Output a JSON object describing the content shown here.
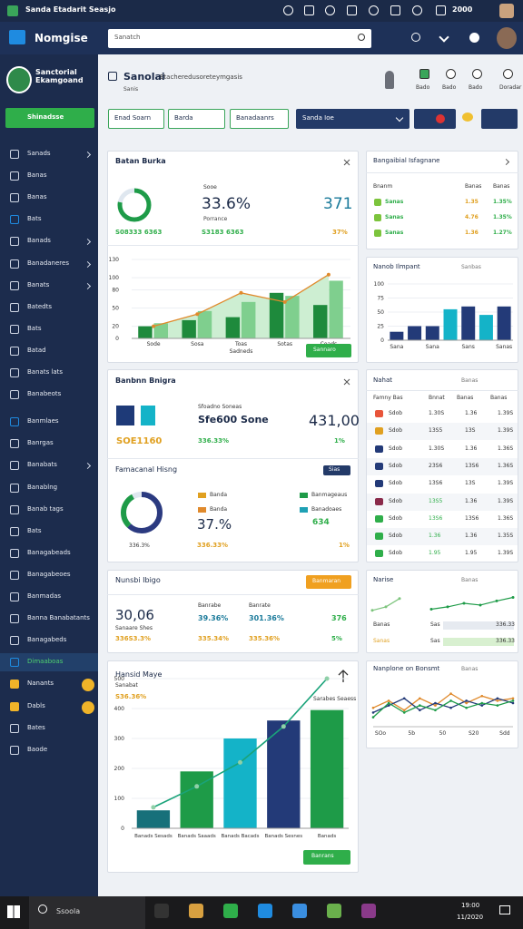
{
  "status_bar": {
    "title": "Sanda Etadarit Seasjo",
    "time": "2000"
  },
  "header": {
    "logo": "Nomgise",
    "search_placeholder": "Sanatch"
  },
  "sidebar": {
    "profile_name": "Sanctorial Ekamgoand",
    "button": "Shinadsse",
    "menu": [
      "Sanads",
      "Banas",
      "Banas",
      "Bats",
      "Banads",
      "Banadaneres",
      "Banats",
      "Batedts",
      "Bats",
      "Batad",
      "Banats lats",
      "Banabeots",
      "Banmlaes",
      "Banrgas",
      "Banabats",
      "Banablng",
      "Banab tags",
      "Bats",
      "Banagabeads",
      "Banagabeoes",
      "Banmadas",
      "Banna Banabatants",
      "Banagabeds",
      "Dimaaboas",
      "Nanants",
      "Dabls",
      "Bates",
      "Baode"
    ]
  },
  "page_header": {
    "title": "Sanolai",
    "subtitle": "Etacheredusoreteymgasis",
    "caption": "Sanis",
    "actions": [
      "Bado",
      "Bado",
      "Bado",
      "Doradar"
    ]
  },
  "filters": [
    "Enad Soarn",
    "Barda",
    "Banadaanrs",
    "Sanda Ioe"
  ],
  "card_performance": {
    "title": "Batan Burka",
    "donut": {
      "values": [
        78,
        22
      ],
      "colors": [
        "#1e9b48",
        "#dfe7ef"
      ]
    },
    "kpi_caption": "Sooe",
    "kpi": "33.6%",
    "kpi_label": "Porrance",
    "count": "371",
    "footer": [
      "S08333 6363",
      "S3183 6363",
      "37%"
    ],
    "chart": {
      "type": "bar",
      "ylim": [
        0,
        130
      ],
      "yticks": [
        0,
        20,
        50,
        80,
        100,
        130
      ],
      "categories": [
        "Sode",
        "Sosa",
        "Toas",
        "Sotas",
        "Coads"
      ],
      "x_label": "Sadneds",
      "series": [
        {
          "color": "#1e8a3c",
          "values": [
            20,
            30,
            35,
            75,
            55
          ]
        },
        {
          "color": "#7fcf8e",
          "values": [
            25,
            45,
            60,
            70,
            95
          ]
        }
      ],
      "line": {
        "color": "#e08a2c",
        "values": [
          20,
          40,
          75,
          60,
          105
        ]
      },
      "area_color": "#cdeed2"
    },
    "button": "Sannaro"
  },
  "card_budget": {
    "title": "Banbnn Bnigra",
    "squares": [
      "#1e3a78",
      "#14b3c8"
    ],
    "stat_caption": "Sfoadno Soneas",
    "stat": "Sfe600 Sone",
    "total": "431,00",
    "left_value": "SOE1160",
    "change": "336.33%",
    "change_right": "1%",
    "section_title": "Famacanal Hisng",
    "section_button": "Sias",
    "donut": {
      "values": [
        62,
        30,
        8
      ],
      "colors": [
        "#2b3a80",
        "#1e9b48",
        "#dfe7ef"
      ]
    },
    "donut_caption": "336.3%",
    "legend": [
      {
        "label": "Banda",
        "color": "#e0a020"
      },
      {
        "label": "Banmageaus",
        "color": "#1e9b48"
      },
      {
        "label": "Banda",
        "color": "#e08a2c"
      },
      {
        "label": "Banadoaes",
        "color": "#1ea0b4"
      }
    ],
    "kpi": "37.%",
    "kpi_sub": "336.33%",
    "kpi2": "634",
    "kpi2_sub": "1%"
  },
  "card_numbers": {
    "title": "Nunsbi Ibigo",
    "button": "Banmaran",
    "value": "30,06",
    "value_label": "Sanaare Shes",
    "value_sub": "336S3.3%",
    "columns": [
      {
        "label": "Banrabe",
        "value": "39.36%",
        "sub": "335.34%"
      },
      {
        "label": "Banrate",
        "value": "301.36%",
        "sub": "335.36%"
      },
      {
        "value": "376",
        "sub": "5%"
      }
    ]
  },
  "card_growth": {
    "title": "Hansid Maye",
    "subtitle": "Sanabat",
    "value": "S36.36%",
    "chart": {
      "type": "bar",
      "ylim": [
        0,
        500
      ],
      "yticks": [
        0,
        100,
        200,
        300,
        400,
        500
      ],
      "categories": [
        "Banads Sesads",
        "Banads Saaads",
        "Banads Bacads",
        "Banads Sesnes",
        "Banads"
      ],
      "values": [
        60,
        190,
        300,
        360,
        395
      ],
      "colors": [
        "#17707a",
        "#1e9b48",
        "#14b3c8",
        "#233a78",
        "#1e9b48"
      ],
      "line": {
        "color": "#1aa37a",
        "values": [
          70,
          140,
          220,
          340,
          500
        ]
      },
      "annotation": "Sarabes Seaess"
    },
    "button": "Banrans"
  },
  "right_table": {
    "title": "Bangaibial Isfagnane",
    "columns": [
      "Bnanm",
      "Banas",
      "Banas"
    ],
    "rows": [
      [
        "Sanas",
        "1.35",
        "1.35%"
      ],
      [
        "Sanas",
        "4.76",
        "1.35%"
      ],
      [
        "Sanas",
        "1.36",
        "1.27%"
      ]
    ]
  },
  "right_impact": {
    "title": "Nanob Ilmpant",
    "link": "Sanbas",
    "chart": {
      "type": "bar",
      "ylim": [
        0,
        100
      ],
      "yticks": [
        0,
        25,
        50,
        75,
        100
      ],
      "categories": [
        "Sana",
        null,
        "Sana",
        null,
        "Sans",
        null,
        "Sanas"
      ],
      "values": [
        15,
        25,
        25,
        55,
        60,
        45,
        60
      ],
      "colors": [
        "#233a78",
        "#233a78",
        "#233a78",
        "#14b3c8",
        "#233a78",
        "#14b3c8",
        "#233a78"
      ]
    }
  },
  "right_list": {
    "title": "Nahat",
    "link": "Banas",
    "columns": [
      "Famny Bas",
      "Bnnat",
      "Banas",
      "Banas"
    ],
    "rows": [
      [
        "Sdob",
        "1.30S",
        "1.36",
        "1.39S"
      ],
      [
        "Sdob",
        "13S5",
        "13S",
        "1.39S"
      ],
      [
        "Sdob",
        "1.30S",
        "1.36",
        "1.36S"
      ],
      [
        "Sdob",
        "23S6",
        "13S6",
        "1.36S"
      ],
      [
        "Sdob",
        "13S6",
        "13S",
        "1.39S"
      ],
      [
        "Sdob",
        "13S5",
        "1.36",
        "1.39S"
      ],
      [
        "Sdob",
        "13S6",
        "13S6",
        "1.36S"
      ],
      [
        "Sdob",
        "1.36",
        "1.36",
        "1.35S"
      ],
      [
        "Sdob",
        "1.95",
        "1.95",
        "1.39S"
      ]
    ]
  },
  "right_trend": {
    "title": "Narise",
    "link": "Banas",
    "chart": {
      "type": "line",
      "ylim": [
        0,
        40
      ],
      "series": [
        {
          "color": "#7cc47c",
          "values": [
            8,
            14,
            28
          ]
        },
        {
          "color": "#1e9b48",
          "values": [
            10,
            14,
            20,
            17,
            24,
            30
          ]
        }
      ]
    },
    "rows": [
      [
        "Banas",
        "Sas",
        "336.33"
      ],
      [
        "Sanas",
        "Sas",
        "336.33"
      ]
    ]
  },
  "right_lines": {
    "title": "Nanplone on Bonsmt",
    "link": "Banas",
    "chart": {
      "type": "line",
      "ylim": [
        0,
        100
      ],
      "categories": [
        "SOo",
        null,
        "5b",
        null,
        "50",
        null,
        "S20",
        null,
        "Sdd",
        null
      ],
      "series": [
        {
          "color": "#e08a2c",
          "values": [
            40,
            55,
            35,
            60,
            45,
            70,
            50,
            65,
            55,
            60
          ]
        },
        {
          "color": "#233a78",
          "values": [
            30,
            45,
            60,
            35,
            50,
            40,
            55,
            45,
            60,
            50
          ]
        },
        {
          "color": "#1e9b48",
          "values": [
            20,
            50,
            30,
            45,
            35,
            55,
            40,
            50,
            45,
            55
          ]
        }
      ]
    }
  },
  "taskbar": {
    "search": "Ssoola",
    "time": "19:00",
    "date": "11/2020"
  }
}
